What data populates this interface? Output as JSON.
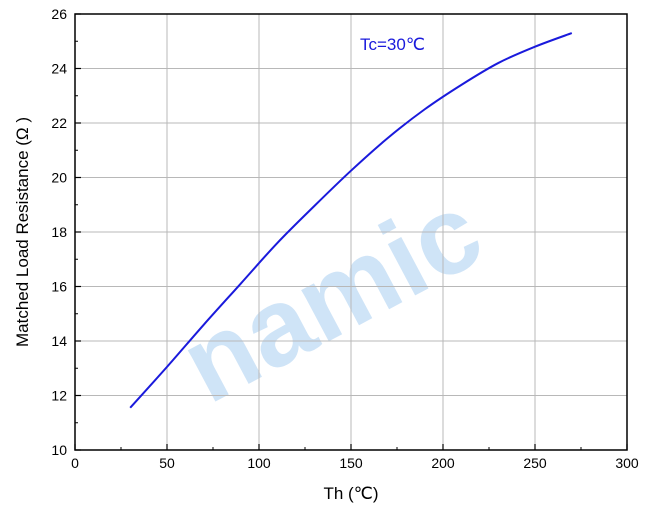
{
  "chart_data": {
    "type": "line",
    "title": "",
    "xlabel": "Th (℃)",
    "ylabel": "Matched Load Resistance (Ω )",
    "xlim": [
      0,
      300
    ],
    "ylim": [
      10,
      26
    ],
    "xticks": [
      0,
      50,
      100,
      150,
      200,
      250,
      300
    ],
    "yticks": [
      10,
      12,
      14,
      16,
      18,
      20,
      22,
      24,
      26
    ],
    "grid": true,
    "annotation": "Tc=30℃",
    "watermark": "namic",
    "series": [
      {
        "color": "#1a1adc",
        "x": [
          30,
          50,
          70,
          90,
          110,
          130,
          150,
          170,
          190,
          210,
          230,
          250,
          270
        ],
        "y": [
          11.55,
          13.05,
          14.6,
          16.1,
          17.6,
          18.95,
          20.25,
          21.45,
          22.5,
          23.4,
          24.2,
          24.8,
          25.3
        ]
      }
    ]
  }
}
